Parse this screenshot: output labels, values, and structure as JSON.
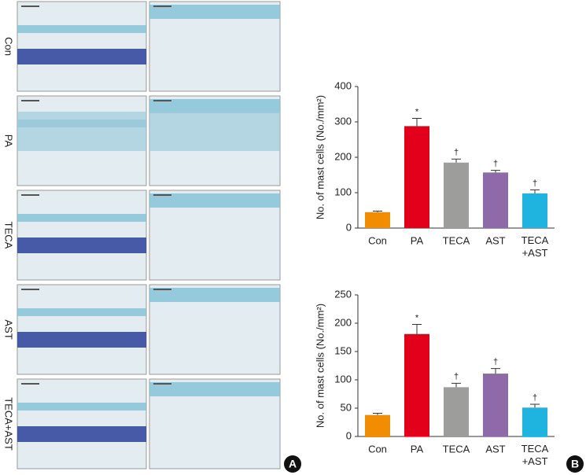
{
  "panel_a": {
    "row_labels": [
      "Con",
      "PA",
      "TECA",
      "AST",
      "TECA+AST"
    ],
    "label": "A"
  },
  "panel_b_label": "B",
  "chart_data": [
    {
      "type": "bar",
      "ylabel": "No. of mast cells (No./mm²)",
      "categories": [
        "Con",
        "PA",
        "TECA",
        "AST",
        "TECA\n+AST"
      ],
      "values": [
        45,
        288,
        185,
        157,
        98
      ],
      "errors": [
        3,
        22,
        10,
        6,
        10
      ],
      "markers": [
        null,
        "*",
        "†",
        "†",
        "†"
      ],
      "colors": [
        "#f28c00",
        "#e2001a",
        "#9d9d9c",
        "#8e6aa8",
        "#1fb3e0"
      ],
      "ylim": [
        0,
        400
      ],
      "yticks": [
        0,
        100,
        200,
        300,
        400
      ]
    },
    {
      "type": "bar",
      "ylabel": "No. of mast cells (No./mm²)",
      "categories": [
        "Con",
        "PA",
        "TECA",
        "AST",
        "TECA\n+AST"
      ],
      "values": [
        38,
        181,
        87,
        111,
        51
      ],
      "errors": [
        3,
        17,
        7,
        9,
        6
      ],
      "markers": [
        null,
        "*",
        "†",
        "†",
        "†"
      ],
      "colors": [
        "#f28c00",
        "#e2001a",
        "#9d9d9c",
        "#8e6aa8",
        "#1fb3e0"
      ],
      "ylim": [
        0,
        250
      ],
      "yticks": [
        0,
        50,
        100,
        150,
        200,
        250
      ]
    }
  ]
}
